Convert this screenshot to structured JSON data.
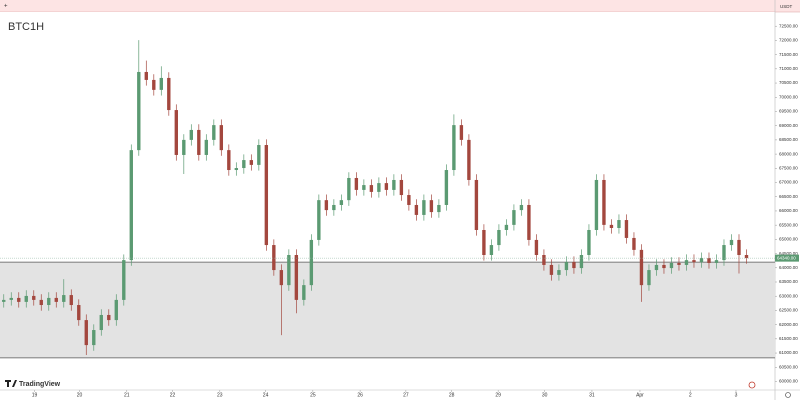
{
  "chart_data": {
    "type": "candlestick",
    "title": "BTC1H",
    "currency": "USDT",
    "brand": "TradingView",
    "up_color": "#5b9a72",
    "down_color": "#a3473e",
    "zone": [
      60830,
      64200
    ],
    "last_label": "64340.00",
    "open": [
      62800,
      62870,
      62940,
      62800,
      63010,
      62870,
      62690,
      62940,
      62800,
      63040,
      62690,
      62160,
      61280,
      61810,
      62340,
      62160,
      62870,
      64270,
      68140,
      70890,
      70610,
      70260,
      70680,
      69550,
      67970,
      68500,
      68850,
      67970,
      68500,
      69020,
      68140,
      67440,
      67510,
      67790,
      67620,
      68320,
      64800,
      63920,
      63390,
      64450,
      62870,
      63390,
      64980,
      66380,
      66030,
      66210,
      66380,
      67160,
      66740,
      66910,
      66670,
      66980,
      66740,
      67090,
      66560,
      66210,
      65860,
      66380,
      65960,
      66210,
      67440,
      69020,
      68500,
      67090,
      65330,
      64450,
      64800,
      65330,
      65510,
      66030,
      66210,
      64980,
      64450,
      64100,
      63750,
      63920,
      64200,
      63990,
      64450,
      65330,
      67090,
      65510,
      65400,
      65680,
      65050,
      64630,
      63390,
      63920,
      64100,
      63990,
      64170,
      64100,
      64270,
      64200,
      64340,
      64170,
      64270,
      64800,
      64980,
      64450
    ],
    "high": [
      63070,
      63140,
      63140,
      63210,
      63210,
      63070,
      63140,
      63140,
      63600,
      63240,
      62890,
      62360,
      62010,
      62540,
      62540,
      63070,
      64470,
      68340,
      72010,
      71290,
      70810,
      71090,
      70880,
      69750,
      68700,
      69050,
      69050,
      68700,
      69220,
      69220,
      68340,
      67710,
      67990,
      67990,
      68520,
      68520,
      65000,
      64120,
      64650,
      64650,
      63590,
      65180,
      66580,
      66580,
      66410,
      66580,
      67360,
      67360,
      67110,
      67110,
      67180,
      67180,
      67290,
      67290,
      66760,
      66410,
      66580,
      66580,
      66410,
      67640,
      69400,
      69220,
      68700,
      67290,
      65530,
      65000,
      65530,
      65710,
      66230,
      66410,
      66410,
      65180,
      64650,
      64300,
      64120,
      64400,
      64400,
      64650,
      65530,
      67290,
      67290,
      65710,
      65880,
      65880,
      65250,
      64830,
      64120,
      64300,
      64300,
      64370,
      64370,
      64470,
      64470,
      64540,
      64540,
      64470,
      65000,
      65180,
      65180,
      64650
    ],
    "low": [
      62600,
      62670,
      62600,
      62600,
      62670,
      62490,
      62490,
      62600,
      62600,
      62490,
      61960,
      60930,
      61080,
      61610,
      61960,
      61960,
      62670,
      64070,
      67940,
      70410,
      70060,
      70060,
      69350,
      67770,
      67300,
      68300,
      67770,
      67770,
      68300,
      67940,
      67240,
      67240,
      67310,
      67420,
      67420,
      64600,
      63720,
      61630,
      63190,
      62400,
      62670,
      63190,
      64780,
      65830,
      65830,
      66010,
      66180,
      66540,
      66540,
      66470,
      66470,
      66540,
      66540,
      66360,
      66010,
      65660,
      65660,
      65760,
      65760,
      66010,
      67240,
      68300,
      66890,
      65130,
      64250,
      64250,
      64600,
      65130,
      65310,
      65830,
      64780,
      64250,
      63900,
      63550,
      63550,
      63720,
      63790,
      63790,
      64250,
      65130,
      65310,
      65200,
      65200,
      64850,
      64430,
      62800,
      63190,
      63720,
      63790,
      63790,
      63900,
      63900,
      64000,
      64000,
      63970,
      63970,
      64070,
      64600,
      63800,
      64140
    ],
    "close": [
      62870,
      62940,
      62800,
      63010,
      62870,
      62690,
      62940,
      62800,
      63040,
      62690,
      62160,
      61280,
      61810,
      62340,
      62160,
      62870,
      64270,
      68140,
      70890,
      70610,
      70260,
      70680,
      69550,
      67970,
      68500,
      68850,
      67970,
      68500,
      69020,
      68140,
      67440,
      67510,
      67790,
      67620,
      68320,
      64800,
      63920,
      63390,
      64450,
      62870,
      63390,
      64980,
      66380,
      66030,
      66210,
      66380,
      67160,
      66740,
      66910,
      66670,
      66980,
      66740,
      67090,
      66560,
      66210,
      65860,
      66380,
      65960,
      66210,
      67440,
      69020,
      68500,
      67090,
      65330,
      64450,
      64800,
      65330,
      65510,
      66030,
      66210,
      64980,
      64450,
      64100,
      63750,
      63920,
      64200,
      63990,
      64450,
      65330,
      67090,
      65510,
      65400,
      65680,
      65050,
      64630,
      63390,
      63920,
      64100,
      63990,
      64170,
      64100,
      64270,
      64200,
      64340,
      64170,
      64270,
      64800,
      64980,
      64450,
      64340
    ],
    "xlim": [
      -0.5,
      102.8
    ],
    "xticks": [
      {
        "value": 4.1,
        "label": "19"
      },
      {
        "value": 10.1,
        "label": "20"
      },
      {
        "value": 16.4,
        "label": "21"
      },
      {
        "value": 22.5,
        "label": "22"
      },
      {
        "value": 28.8,
        "label": "23"
      },
      {
        "value": 34.9,
        "label": "24"
      },
      {
        "value": 41.2,
        "label": "25"
      },
      {
        "value": 47.5,
        "label": "26"
      },
      {
        "value": 53.6,
        "label": "27"
      },
      {
        "value": 59.7,
        "label": "28"
      },
      {
        "value": 65.9,
        "label": "29"
      },
      {
        "value": 72.1,
        "label": "30"
      },
      {
        "value": 78.4,
        "label": "31"
      },
      {
        "value": 84.8,
        "label": "Apr"
      },
      {
        "value": 91.5,
        "label": "2"
      },
      {
        "value": 97.6,
        "label": "3"
      }
    ],
    "ylim": [
      59700,
      73000
    ],
    "yticks": [
      {
        "value": 72500,
        "label": "72500.00"
      },
      {
        "value": 72000,
        "label": "72000.00"
      },
      {
        "value": 71500,
        "label": "71500.00"
      },
      {
        "value": 71000,
        "label": "71000.00"
      },
      {
        "value": 70500,
        "label": "70500.00"
      },
      {
        "value": 70000,
        "label": "70000.00"
      },
      {
        "value": 69500,
        "label": "69500.00"
      },
      {
        "value": 69000,
        "label": "69000.00"
      },
      {
        "value": 68500,
        "label": "68500.00"
      },
      {
        "value": 68000,
        "label": "68000.00"
      },
      {
        "value": 67500,
        "label": "67500.00"
      },
      {
        "value": 67000,
        "label": "67000.00"
      },
      {
        "value": 66500,
        "label": "66500.00"
      },
      {
        "value": 66000,
        "label": "66000.00"
      },
      {
        "value": 65500,
        "label": "65500.00"
      },
      {
        "value": 65000,
        "label": "65000.00"
      },
      {
        "value": 64500,
        "label": "64500.00"
      },
      {
        "value": 64000,
        "label": "64000.00"
      },
      {
        "value": 63500,
        "label": "63500.00"
      },
      {
        "value": 63000,
        "label": "63000.00"
      },
      {
        "value": 62500,
        "label": "62500.00"
      },
      {
        "value": 62000,
        "label": "62000.00"
      },
      {
        "value": 61500,
        "label": "61500.00"
      },
      {
        "value": 61000,
        "label": "61000.00"
      },
      {
        "value": 60500,
        "label": "60500.00"
      },
      {
        "value": 60000,
        "label": "60000.00"
      }
    ]
  }
}
